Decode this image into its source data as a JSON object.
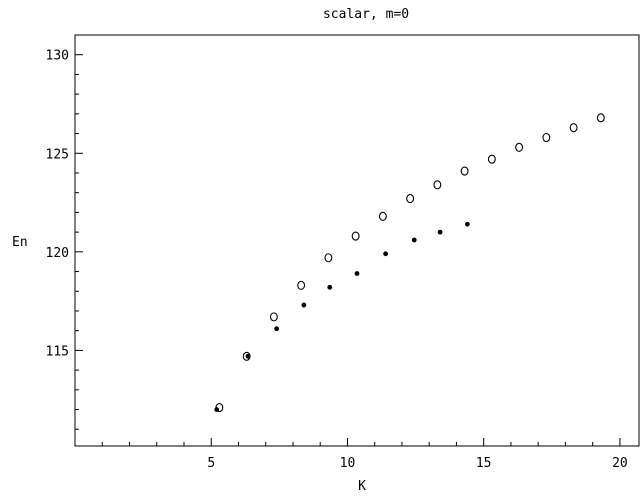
{
  "chart_data": {
    "type": "scatter",
    "title": "scalar, m=0",
    "xlabel": "K",
    "ylabel": "En",
    "xlim": [
      0,
      20.7
    ],
    "ylim": [
      110.15,
      131
    ],
    "grid": false,
    "x_ticks": {
      "major": [
        5,
        10,
        15,
        20
      ],
      "major_labels": [
        "5",
        "10",
        "15",
        "20"
      ],
      "minor_step": 1
    },
    "y_ticks": {
      "major": [
        115,
        120,
        125,
        130
      ],
      "major_labels": [
        "115",
        "120",
        "125",
        "130"
      ],
      "minor_step": 1
    },
    "series": [
      {
        "marker": "open-circle",
        "color": "#000000",
        "x": [
          5.3,
          6.3,
          7.3,
          8.3,
          9.3,
          10.3,
          11.3,
          12.3,
          13.3,
          14.3,
          15.3,
          16.3,
          17.3,
          18.3,
          19.3
        ],
        "y": [
          112.1,
          114.7,
          116.7,
          118.3,
          119.7,
          120.8,
          121.8,
          122.7,
          123.4,
          124.1,
          124.7,
          125.3,
          125.8,
          126.3,
          126.8
        ]
      },
      {
        "marker": "filled-dot",
        "color": "#000000",
        "x": [
          5.2,
          6.35,
          7.4,
          8.4,
          9.35,
          10.35,
          11.4,
          12.45,
          13.4,
          14.4
        ],
        "y": [
          112.0,
          114.7,
          116.1,
          117.3,
          118.2,
          118.9,
          119.9,
          120.6,
          121.0,
          121.4
        ]
      }
    ]
  }
}
